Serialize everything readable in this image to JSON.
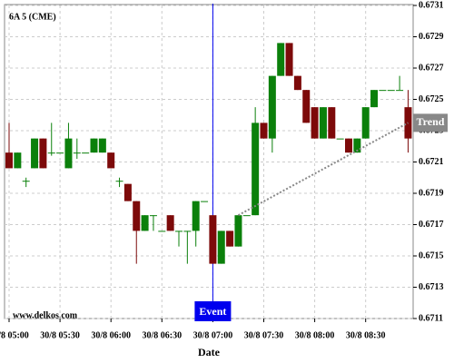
{
  "chart_data": {
    "type": "candlestick",
    "title": "6A 5 (CME)",
    "watermark": "www.delkos.com",
    "xlabel": "Date",
    "categories": [
      "30/8 05:00",
      null,
      null,
      null,
      null,
      null,
      "30/8 05:30",
      null,
      null,
      null,
      null,
      null,
      "30/8 06:00",
      null,
      null,
      null,
      null,
      null,
      "30/8 06:30",
      null,
      null,
      null,
      null,
      null,
      "30/8 07:00",
      null,
      null,
      null,
      null,
      null,
      "30/8 07:30",
      null,
      null,
      null,
      null,
      null,
      "30/8 08:00",
      null,
      null,
      null,
      null,
      null,
      "30/8 08:30",
      null,
      null,
      null,
      null,
      null
    ],
    "open": [
      0.67216,
      0.67206,
      0.67198,
      0.67206,
      0.67225,
      0.67216,
      0.67216,
      0.67206,
      0.67216,
      0.67216,
      0.67216,
      0.67216,
      0.67216,
      0.67198,
      0.67196,
      0.67185,
      0.67166,
      0.67176,
      0.67166,
      0.67176,
      0.67166,
      0.67166,
      0.67166,
      0.67185,
      0.67176,
      0.67145,
      0.67166,
      0.67156,
      0.67176,
      0.67176,
      0.67235,
      0.67225,
      0.67265,
      0.67286,
      0.67265,
      0.67256,
      0.67245,
      0.67225,
      0.67245,
      0.67225,
      0.67225,
      0.67216,
      0.67225,
      0.67245,
      0.67256,
      0.67256,
      0.67256,
      0.67245
    ],
    "high": [
      0.67235,
      0.67216,
      0.672,
      0.67225,
      0.67225,
      0.67235,
      0.67216,
      0.67235,
      0.67225,
      0.67216,
      0.67225,
      0.67225,
      0.67216,
      0.672,
      0.67196,
      0.67185,
      0.67176,
      0.67176,
      0.67166,
      0.67176,
      0.67166,
      0.67166,
      0.67185,
      0.67185,
      0.67176,
      0.67166,
      0.67166,
      0.67176,
      0.67176,
      0.67245,
      0.67235,
      0.67265,
      0.67286,
      0.67286,
      0.67265,
      0.67256,
      0.67245,
      0.67245,
      0.67245,
      0.67225,
      0.67225,
      0.67225,
      0.67245,
      0.67256,
      0.67256,
      0.67256,
      0.67265,
      0.67256
    ],
    "low": [
      0.67206,
      0.67206,
      0.67194,
      0.67206,
      0.67206,
      0.67214,
      0.67216,
      0.67206,
      0.67212,
      0.67216,
      0.67216,
      0.67216,
      0.67206,
      0.67194,
      0.67185,
      0.67145,
      0.67166,
      0.67166,
      0.67166,
      0.67166,
      0.67156,
      0.67145,
      0.67156,
      0.67185,
      0.67145,
      0.67145,
      0.67156,
      0.67156,
      0.67176,
      0.67176,
      0.67225,
      0.67216,
      0.67265,
      0.67265,
      0.67256,
      0.67235,
      0.67225,
      0.67225,
      0.67225,
      0.67225,
      0.67216,
      0.67216,
      0.67225,
      0.67245,
      0.67256,
      0.67256,
      0.67256,
      0.67216
    ],
    "close": [
      0.67206,
      0.67216,
      0.67198,
      0.67225,
      0.67206,
      0.67216,
      0.67216,
      0.67225,
      0.67216,
      0.67216,
      0.67225,
      0.67225,
      0.67206,
      0.67198,
      0.67185,
      0.67166,
      0.67176,
      0.67176,
      0.67166,
      0.67166,
      0.67166,
      0.67166,
      0.67185,
      0.67185,
      0.67145,
      0.67166,
      0.67156,
      0.67176,
      0.67176,
      0.67235,
      0.67225,
      0.67265,
      0.67286,
      0.67265,
      0.67256,
      0.67235,
      0.67225,
      0.67245,
      0.67225,
      0.67225,
      0.67216,
      0.67225,
      0.67245,
      0.67256,
      0.67256,
      0.67256,
      0.67256,
      0.67225
    ],
    "up_color": "#0b800b",
    "down_color": "#7d0a0a",
    "ylim": [
      0.6711,
      0.6731
    ],
    "yticks": [
      0.6711,
      0.6713,
      0.6715,
      0.6717,
      0.6719,
      0.6721,
      0.6723,
      0.6725,
      0.6727,
      0.6729,
      0.6731
    ],
    "grid": true,
    "event": {
      "label": "Event",
      "index": 24,
      "color": "#0000ee"
    },
    "trend": {
      "label": "Trend",
      "x": [
        27,
        47
      ],
      "y": [
        0.67176,
        0.67235
      ],
      "color": "#888888"
    }
  }
}
